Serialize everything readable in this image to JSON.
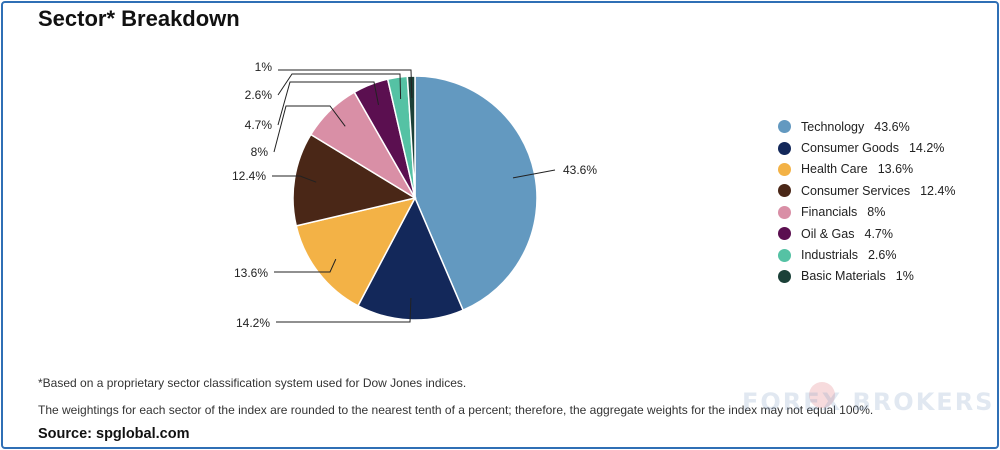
{
  "title": "Sector* Breakdown",
  "footnote": "*Based on a proprietary sector classification system used for Dow Jones indices.",
  "weighting_note": "The weightings for each sector of the index are rounded to the nearest tenth of a percent; therefore, the aggregate weights for the index may not equal 100%.",
  "source": "Source: spglobal.com",
  "watermark": {
    "text": "FOREX BROKERS",
    "logo": "forexbrokers-heart-logo"
  },
  "chart_data": {
    "type": "pie",
    "title": "Sector* Breakdown",
    "start_angle_deg": 0,
    "direction": "clockwise",
    "legend_position": "right",
    "slices": [
      {
        "name": "Technology",
        "value": 43.6,
        "label": "43.6%",
        "color": "#6399c0"
      },
      {
        "name": "Consumer Goods",
        "value": 14.2,
        "label": "14.2%",
        "color": "#13285a"
      },
      {
        "name": "Health Care",
        "value": 13.6,
        "label": "13.6%",
        "color": "#f3b246"
      },
      {
        "name": "Consumer Services",
        "value": 12.4,
        "label": "12.4%",
        "color": "#4a2717"
      },
      {
        "name": "Financials",
        "value": 8,
        "label": "8%",
        "color": "#d98fa6"
      },
      {
        "name": "Oil & Gas",
        "value": 4.7,
        "label": "4.7%",
        "color": "#5b0f50"
      },
      {
        "name": "Industrials",
        "value": 2.6,
        "label": "2.6%",
        "color": "#55c2a4"
      },
      {
        "name": "Basic Materials",
        "value": 1,
        "label": "1%",
        "color": "#1b4038"
      }
    ]
  }
}
